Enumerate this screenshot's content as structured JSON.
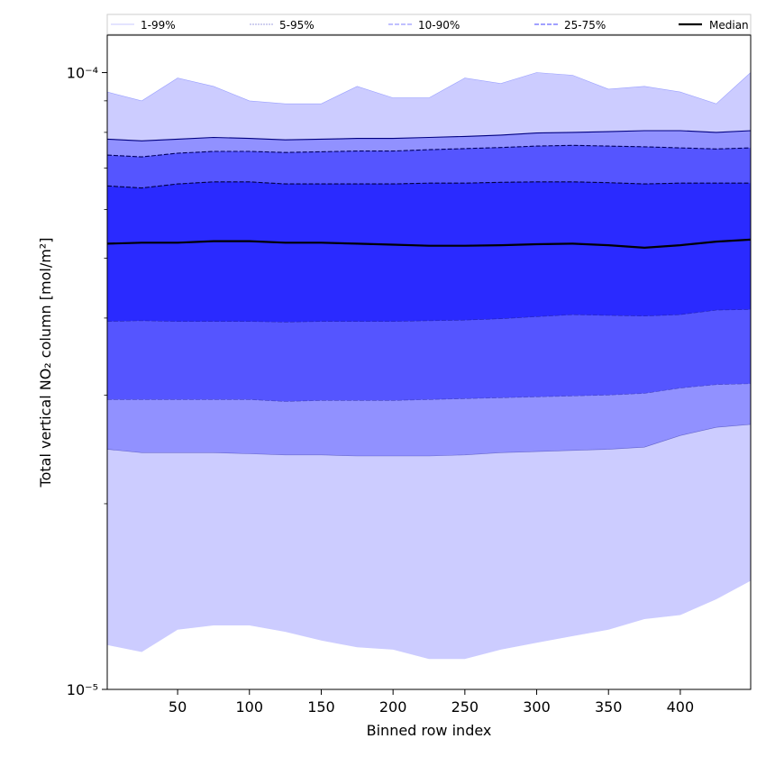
{
  "chart_data": {
    "type": "area",
    "title": "",
    "xlabel": "Binned row index",
    "ylabel": "Total vertical NO₂ column [mol/m²]",
    "xlim": [
      1,
      449
    ],
    "ylim": [
      1e-05,
      0.000115
    ],
    "y_scale": "log",
    "grid": false,
    "legend_position": "top",
    "x_ticks": [
      50,
      100,
      150,
      200,
      250,
      300,
      350,
      400
    ],
    "y_ticks": [
      {
        "value": 1e-05,
        "label": "10⁻⁵"
      },
      {
        "value": 0.0001,
        "label": "10⁻⁴"
      }
    ],
    "x": [
      1,
      25,
      50,
      75,
      100,
      125,
      150,
      175,
      200,
      225,
      250,
      275,
      300,
      325,
      350,
      375,
      400,
      425,
      449
    ],
    "series": [
      {
        "name": "1-99%",
        "band": true,
        "color": "#ccccff",
        "line_color": "#9aa0ff",
        "lower": [
          1.18e-05,
          1.15e-05,
          1.25e-05,
          1.27e-05,
          1.27e-05,
          1.24e-05,
          1.2e-05,
          1.17e-05,
          1.16e-05,
          1.12e-05,
          1.12e-05,
          1.16e-05,
          1.19e-05,
          1.22e-05,
          1.25e-05,
          1.3e-05,
          1.32e-05,
          1.4e-05,
          1.5e-05
        ],
        "upper": [
          9.3e-05,
          9e-05,
          9.8e-05,
          9.5e-05,
          9e-05,
          8.9e-05,
          8.9e-05,
          9.5e-05,
          9.1e-05,
          9.1e-05,
          9.8e-05,
          9.6e-05,
          0.0001,
          9.9e-05,
          9.4e-05,
          9.5e-05,
          9.3e-05,
          8.9e-05,
          0.0001
        ]
      },
      {
        "name": "5-95%",
        "band": true,
        "color": "#9191ff",
        "line_color": "#000080",
        "lower": [
          2.45e-05,
          2.42e-05,
          2.42e-05,
          2.42e-05,
          2.41e-05,
          2.4e-05,
          2.4e-05,
          2.39e-05,
          2.39e-05,
          2.39e-05,
          2.4e-05,
          2.42e-05,
          2.43e-05,
          2.44e-05,
          2.45e-05,
          2.47e-05,
          2.58e-05,
          2.66e-05,
          2.69e-05
        ],
        "upper": [
          7.8e-05,
          7.75e-05,
          7.8e-05,
          7.85e-05,
          7.82e-05,
          7.78e-05,
          7.8e-05,
          7.82e-05,
          7.82e-05,
          7.85e-05,
          7.88e-05,
          7.92e-05,
          7.98e-05,
          8e-05,
          8.02e-05,
          8.05e-05,
          8.05e-05,
          8e-05,
          8.05e-05
        ]
      },
      {
        "name": "10-90%",
        "band": true,
        "color": "#5555ff",
        "line_color": "#000060",
        "lower": [
          2.95e-05,
          2.95e-05,
          2.95e-05,
          2.95e-05,
          2.95e-05,
          2.93e-05,
          2.94e-05,
          2.94e-05,
          2.94e-05,
          2.95e-05,
          2.96e-05,
          2.97e-05,
          2.98e-05,
          2.99e-05,
          3e-05,
          3.02e-05,
          3.08e-05,
          3.12e-05,
          3.13e-05
        ],
        "upper": [
          7.35e-05,
          7.3e-05,
          7.4e-05,
          7.45e-05,
          7.45e-05,
          7.42e-05,
          7.44e-05,
          7.46e-05,
          7.46e-05,
          7.5e-05,
          7.53e-05,
          7.56e-05,
          7.6e-05,
          7.62e-05,
          7.6e-05,
          7.58e-05,
          7.55e-05,
          7.52e-05,
          7.55e-05
        ]
      },
      {
        "name": "25-75%",
        "band": true,
        "color": "#2a2aff",
        "line_color": "#000040",
        "lower": [
          3.95e-05,
          3.96e-05,
          3.95e-05,
          3.95e-05,
          3.95e-05,
          3.94e-05,
          3.95e-05,
          3.95e-05,
          3.95e-05,
          3.96e-05,
          3.97e-05,
          3.99e-05,
          4.02e-05,
          4.05e-05,
          4.04e-05,
          4.03e-05,
          4.05e-05,
          4.12e-05,
          4.13e-05
        ],
        "upper": [
          6.55e-05,
          6.5e-05,
          6.6e-05,
          6.65e-05,
          6.65e-05,
          6.6e-05,
          6.6e-05,
          6.6e-05,
          6.6e-05,
          6.62e-05,
          6.62e-05,
          6.64e-05,
          6.65e-05,
          6.65e-05,
          6.63e-05,
          6.6e-05,
          6.62e-05,
          6.62e-05,
          6.62e-05
        ]
      },
      {
        "name": "Median",
        "band": false,
        "color": "#000000",
        "values": [
          5.28e-05,
          5.3e-05,
          5.3e-05,
          5.33e-05,
          5.33e-05,
          5.3e-05,
          5.3e-05,
          5.28e-05,
          5.26e-05,
          5.24e-05,
          5.24e-05,
          5.25e-05,
          5.27e-05,
          5.28e-05,
          5.25e-05,
          5.2e-05,
          5.25e-05,
          5.32e-05,
          5.36e-05
        ]
      }
    ]
  }
}
